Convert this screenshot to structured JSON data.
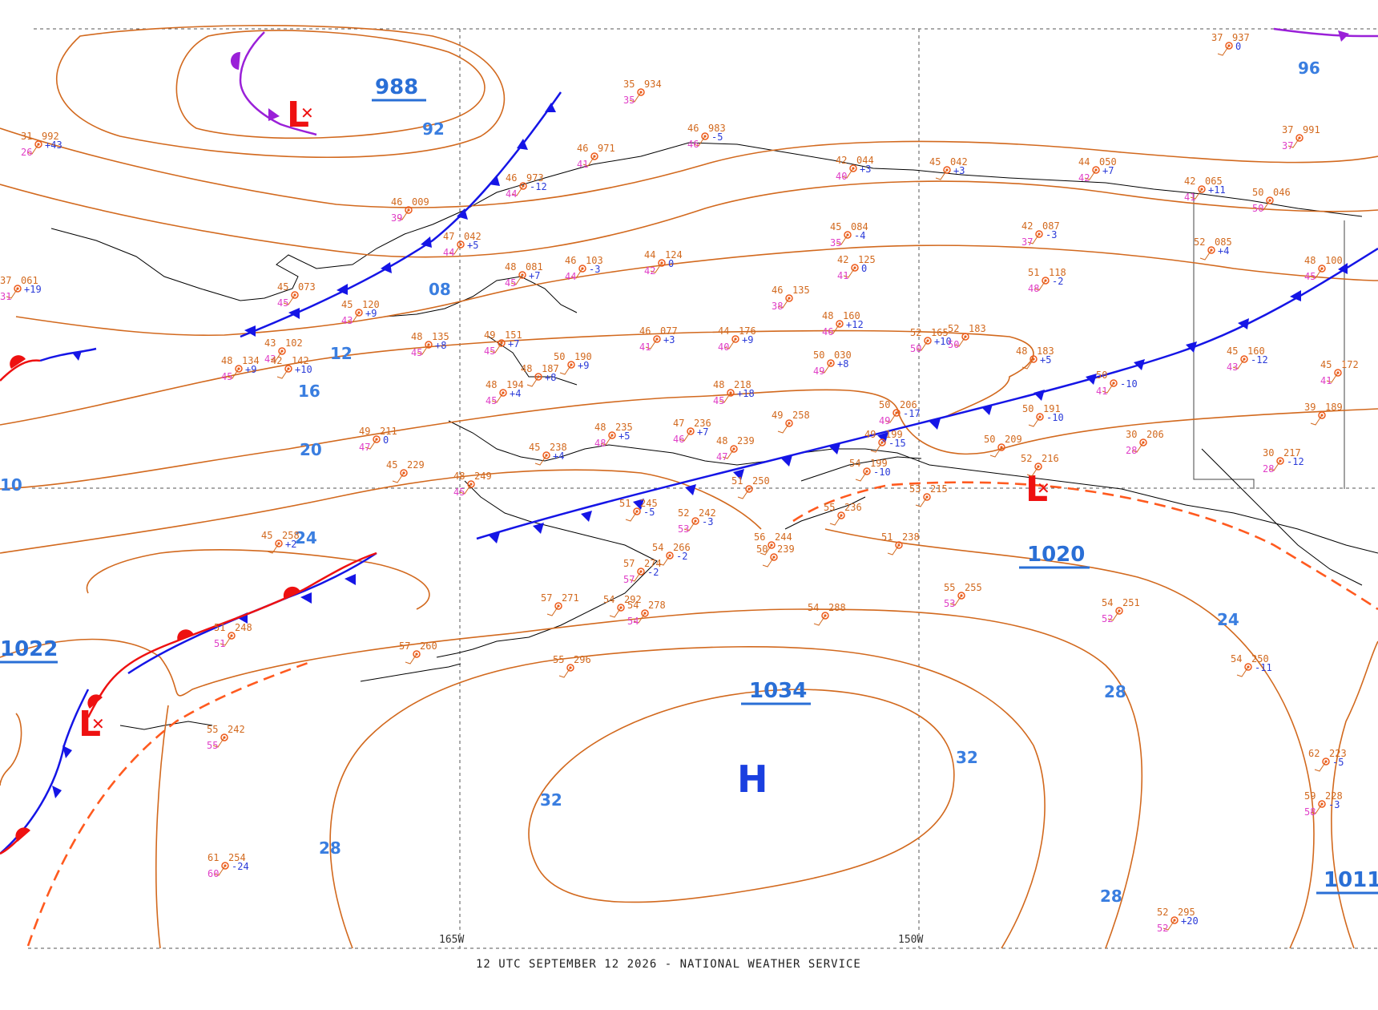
{
  "caption": "12 UTC SEPTEMBER 12 2026 - NATIONAL WEATHER SERVICE",
  "longitude_labels": [
    "165W",
    "150W"
  ],
  "colors": {
    "isobar": "#d2691e",
    "label": "#3a7ee0",
    "cold_front": "#1515e6",
    "warm_front": "#ee1111",
    "occluded_front": "#9a20d8",
    "trough": "#ff5a1f",
    "coast": "#000000",
    "grid": "#555555"
  },
  "isobar_labels": [
    "92",
    "96",
    "08",
    "12",
    "16",
    "20",
    "24",
    "28",
    "32",
    "32",
    "32",
    "28",
    "28",
    "24",
    "10"
  ],
  "centers": [
    {
      "type": "L",
      "pressure": "988"
    },
    {
      "type": "L",
      "pressure": ""
    },
    {
      "type": "L",
      "pressure": "1020"
    },
    {
      "type": "H",
      "pressure": "1034"
    },
    {
      "type": "",
      "pressure": "1022"
    },
    {
      "type": "",
      "pressure": "1011"
    }
  ],
  "stations": [
    {
      "t": "31",
      "p": "992",
      "td": "26",
      "c": "+43"
    },
    {
      "t": "35",
      "p": "934",
      "td": "35",
      "c": ""
    },
    {
      "t": "46",
      "p": "983",
      "td": "46",
      "c": "-5"
    },
    {
      "t": "46",
      "p": "971",
      "td": "41",
      "c": ""
    },
    {
      "t": "46",
      "p": "973",
      "td": "44",
      "c": "-12"
    },
    {
      "t": "46",
      "p": "009",
      "td": "39",
      "c": ""
    },
    {
      "t": "47",
      "p": "042",
      "td": "44",
      "c": "+5"
    },
    {
      "t": "48",
      "p": "081",
      "td": "45",
      "c": "+7"
    },
    {
      "t": "46",
      "p": "103",
      "td": "44",
      "c": "-3"
    },
    {
      "t": "44",
      "p": "124",
      "td": "42",
      "c": "0"
    },
    {
      "t": "37",
      "p": "061",
      "td": "31",
      "c": "+19"
    },
    {
      "t": "45",
      "p": "073",
      "td": "45",
      "c": ""
    },
    {
      "t": "45",
      "p": "120",
      "td": "43",
      "c": "+9"
    },
    {
      "t": "43",
      "p": "102",
      "td": "43",
      "c": ""
    },
    {
      "t": "48",
      "p": "134",
      "td": "45",
      "c": "+9"
    },
    {
      "t": "42",
      "p": "142",
      "td": "",
      "c": "+10"
    },
    {
      "t": "48",
      "p": "135",
      "td": "45",
      "c": "+8"
    },
    {
      "t": "49",
      "p": "151",
      "td": "45",
      "c": "+7"
    },
    {
      "t": "48",
      "p": "187",
      "td": "",
      "c": "+8"
    },
    {
      "t": "50",
      "p": "190",
      "td": "",
      "c": "+9"
    },
    {
      "t": "48",
      "p": "194",
      "td": "45",
      "c": "+4"
    },
    {
      "t": "49",
      "p": "211",
      "td": "47",
      "c": "0"
    },
    {
      "t": "45",
      "p": "229",
      "td": "",
      "c": ""
    },
    {
      "t": "48",
      "p": "249",
      "td": "45",
      "c": ""
    },
    {
      "t": "45",
      "p": "238",
      "td": "",
      "c": "+4"
    },
    {
      "t": "48",
      "p": "235",
      "td": "48",
      "c": "+5"
    },
    {
      "t": "47",
      "p": "236",
      "td": "46",
      "c": "+7"
    },
    {
      "t": "48",
      "p": "239",
      "td": "47",
      "c": ""
    },
    {
      "t": "46",
      "p": "077",
      "td": "41",
      "c": "+3"
    },
    {
      "t": "44",
      "p": "176",
      "td": "40",
      "c": "+9"
    },
    {
      "t": "48",
      "p": "218",
      "td": "45",
      "c": "+18"
    },
    {
      "t": "49",
      "p": "258",
      "td": "",
      "c": ""
    },
    {
      "t": "51",
      "p": "250",
      "td": "",
      "c": ""
    },
    {
      "t": "51",
      "p": "245",
      "td": "",
      "c": "-5"
    },
    {
      "t": "52",
      "p": "242",
      "td": "53",
      "c": "-3"
    },
    {
      "t": "54",
      "p": "266",
      "td": "",
      "c": "-2"
    },
    {
      "t": "57",
      "p": "274",
      "td": "57",
      "c": "-2"
    },
    {
      "t": "57",
      "p": "271",
      "td": "",
      "c": ""
    },
    {
      "t": "54",
      "p": "292",
      "td": "",
      "c": ""
    },
    {
      "t": "54",
      "p": "278",
      "td": "54",
      "c": ""
    },
    {
      "t": "55",
      "p": "296",
      "td": "",
      "c": ""
    },
    {
      "t": "57",
      "p": "260",
      "td": "",
      "c": ""
    },
    {
      "t": "45",
      "p": "258",
      "td": "",
      "c": "+2"
    },
    {
      "t": "51",
      "p": "248",
      "td": "51",
      "c": ""
    },
    {
      "t": "55",
      "p": "242",
      "td": "55",
      "c": ""
    },
    {
      "t": "61",
      "p": "254",
      "td": "60",
      "c": "-24"
    },
    {
      "t": "42",
      "p": "044",
      "td": "40",
      "c": "+3"
    },
    {
      "t": "45",
      "p": "042",
      "td": "",
      "c": "+3"
    },
    {
      "t": "45",
      "p": "084",
      "td": "35",
      "c": "-4"
    },
    {
      "t": "42",
      "p": "125",
      "td": "41",
      "c": "0"
    },
    {
      "t": "46",
      "p": "135",
      "td": "38",
      "c": ""
    },
    {
      "t": "48",
      "p": "160",
      "td": "46",
      "c": "+12"
    },
    {
      "t": "50",
      "p": "030",
      "td": "49",
      "c": "+8"
    },
    {
      "t": "52",
      "p": "165",
      "td": "50",
      "c": "+10"
    },
    {
      "t": "52",
      "p": "183",
      "td": "50",
      "c": ""
    },
    {
      "t": "48",
      "p": "183",
      "td": "",
      "c": "+5"
    },
    {
      "t": "44",
      "p": "050",
      "td": "42",
      "c": "+7"
    },
    {
      "t": "42",
      "p": "087",
      "td": "37",
      "c": "-3"
    },
    {
      "t": "51",
      "p": "118",
      "td": "48",
      "c": "-2"
    },
    {
      "t": "50",
      "p": "206",
      "td": "49",
      "c": "-17"
    },
    {
      "t": "49",
      "p": "199",
      "td": "",
      "c": "-15"
    },
    {
      "t": "54",
      "p": "199",
      "td": "",
      "c": "-10"
    },
    {
      "t": "50",
      "p": "209",
      "td": "",
      "c": ""
    },
    {
      "t": "53",
      "p": "215",
      "td": "",
      "c": ""
    },
    {
      "t": "52",
      "p": "216",
      "td": "",
      "c": ""
    },
    {
      "t": "50",
      "p": "191",
      "td": "",
      "c": "-10"
    },
    {
      "t": "55",
      "p": "236",
      "td": "",
      "c": ""
    },
    {
      "t": "56",
      "p": "244",
      "td": "",
      "c": ""
    },
    {
      "t": "50",
      "p": "239",
      "td": "",
      "c": ""
    },
    {
      "t": "51",
      "p": "238",
      "td": "",
      "c": ""
    },
    {
      "t": "55",
      "p": "255",
      "td": "53",
      "c": ""
    },
    {
      "t": "54",
      "p": "288",
      "td": "",
      "c": ""
    },
    {
      "t": "54",
      "p": "251",
      "td": "52",
      "c": ""
    },
    {
      "t": "42",
      "p": "065",
      "td": "41",
      "c": "+11"
    },
    {
      "t": "50",
      "p": "046",
      "td": "50",
      "c": ""
    },
    {
      "t": "52",
      "p": "085",
      "td": "",
      "c": "+4"
    },
    {
      "t": "48",
      "p": "100",
      "td": "45",
      "c": ""
    },
    {
      "t": "45",
      "p": "160",
      "td": "43",
      "c": "-12"
    },
    {
      "t": "45",
      "p": "172",
      "td": "41",
      "c": ""
    },
    {
      "t": "39",
      "p": "189",
      "td": "",
      "c": ""
    },
    {
      "t": "30",
      "p": "206",
      "td": "28",
      "c": ""
    },
    {
      "t": "30",
      "p": "217",
      "td": "28",
      "c": "-12"
    },
    {
      "t": "37",
      "p": "937",
      "td": "",
      "c": "0"
    },
    {
      "t": "37",
      "p": "991",
      "td": "37",
      "c": ""
    },
    {
      "t": "50",
      "p": "",
      "td": "41",
      "c": "-10"
    },
    {
      "t": "54",
      "p": "250",
      "td": "",
      "c": "-11"
    },
    {
      "t": "62",
      "p": "223",
      "td": "",
      "c": "-5"
    },
    {
      "t": "59",
      "p": "228",
      "td": "58",
      "c": "-3"
    },
    {
      "t": "52",
      "p": "295",
      "td": "52",
      "c": "+20"
    }
  ]
}
